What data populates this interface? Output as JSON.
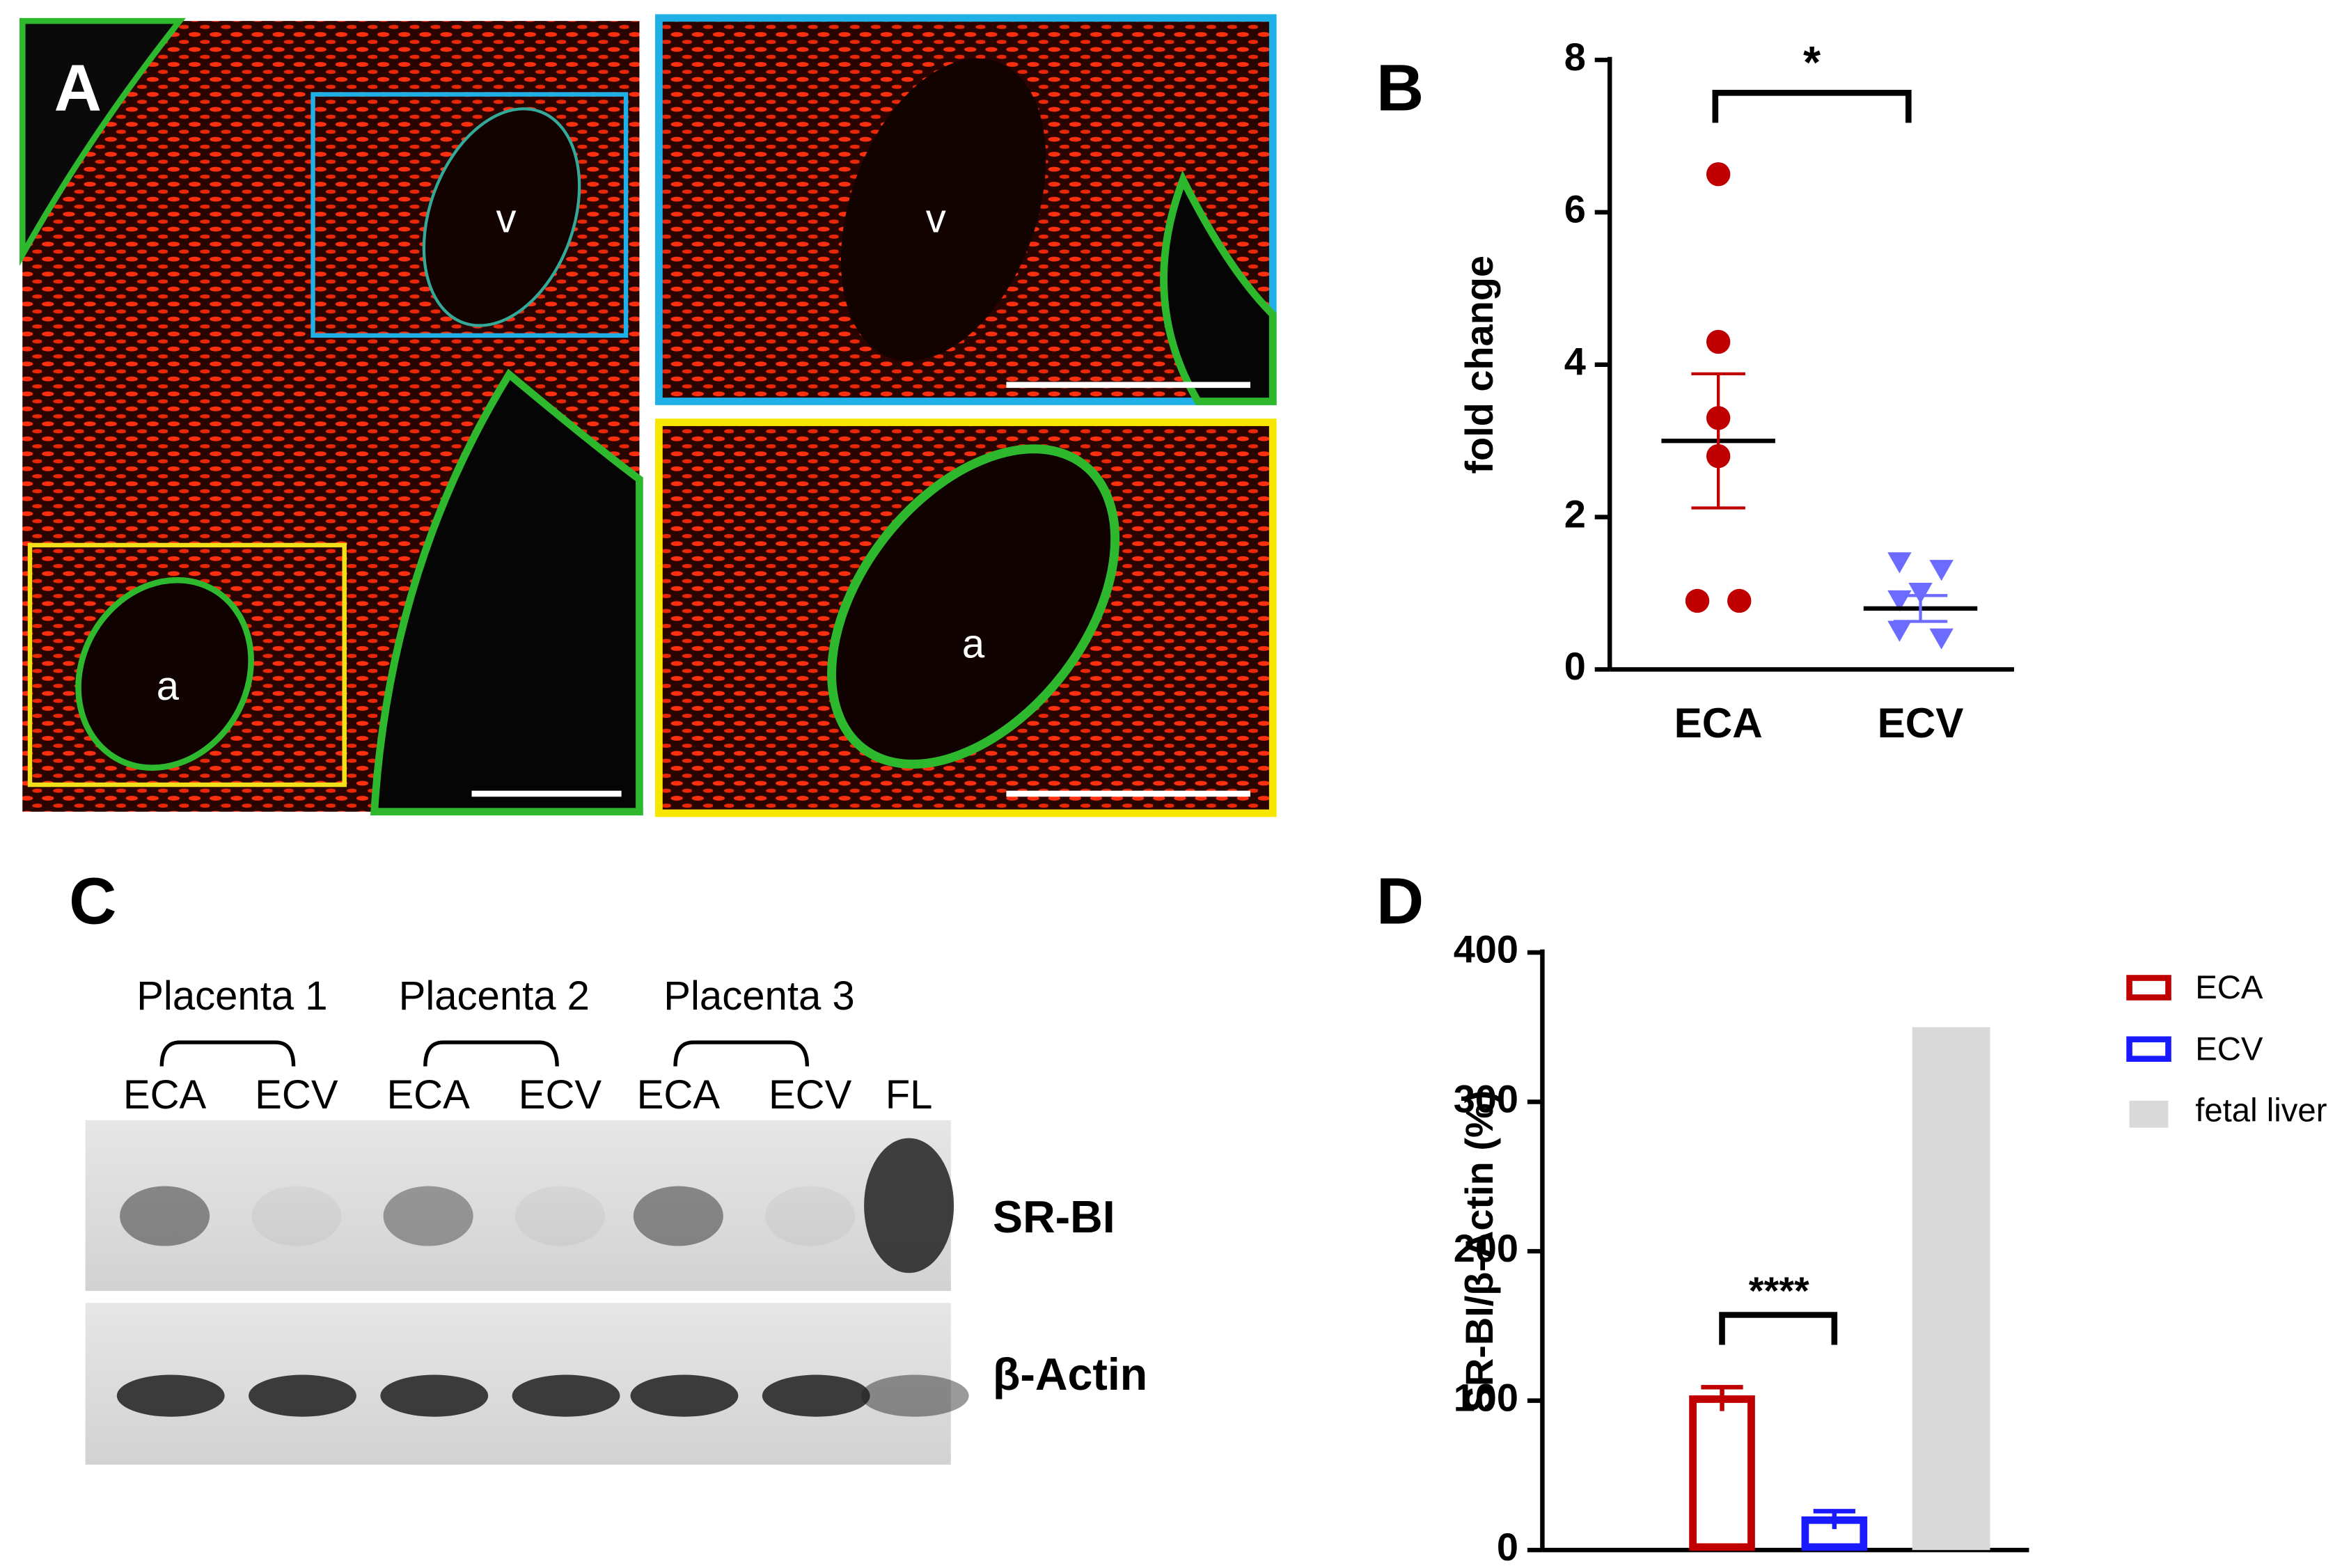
{
  "panels": [
    "A",
    "B",
    "C",
    "D"
  ],
  "micrograph": {
    "lumen_labels": [
      "v",
      "a",
      "v",
      "a"
    ]
  },
  "blot": {
    "groups": [
      "Placenta 1",
      "Placenta 2",
      "Placenta 3"
    ],
    "lanes": [
      "ECA",
      "ECV",
      "ECA",
      "ECV",
      "ECA",
      "ECV",
      "FL"
    ],
    "rows": [
      "SR-BI",
      "β-Actin"
    ]
  },
  "chart_data": [
    {
      "type": "scatter",
      "ylabel": "fold change",
      "categories": [
        "ECA",
        "ECV"
      ],
      "ylim": [
        0,
        8
      ],
      "yticks": [
        0,
        2,
        4,
        6,
        8
      ],
      "significance": "*",
      "series": [
        {
          "name": "ECA",
          "color": "#c00000",
          "values": [
            6.5,
            4.3,
            3.3,
            2.8,
            0.9,
            0.9
          ],
          "mean": 3.0,
          "sem": 0.88
        },
        {
          "name": "ECV",
          "color": "#6b6bff",
          "values": [
            1.4,
            1.3,
            1.0,
            0.9,
            0.5,
            0.4
          ],
          "mean": 0.8,
          "sem": 0.17
        }
      ]
    },
    {
      "type": "bar",
      "ylabel": "SR-BI/β-Actin (%)",
      "ylim": [
        0,
        400
      ],
      "yticks": [
        0,
        100,
        200,
        300,
        400
      ],
      "significance": "****",
      "series": [
        {
          "name": "ECA",
          "color": "#c00000",
          "hollow": true,
          "values": [
            101
          ],
          "errors": [
            8
          ]
        },
        {
          "name": "ECV",
          "color": "#1a1aff",
          "hollow": true,
          "values": [
            20
          ],
          "errors": [
            6
          ]
        },
        {
          "name": "fetal liver",
          "color": "#d9d9d9",
          "hollow": false,
          "values": [
            350
          ]
        }
      ]
    }
  ]
}
